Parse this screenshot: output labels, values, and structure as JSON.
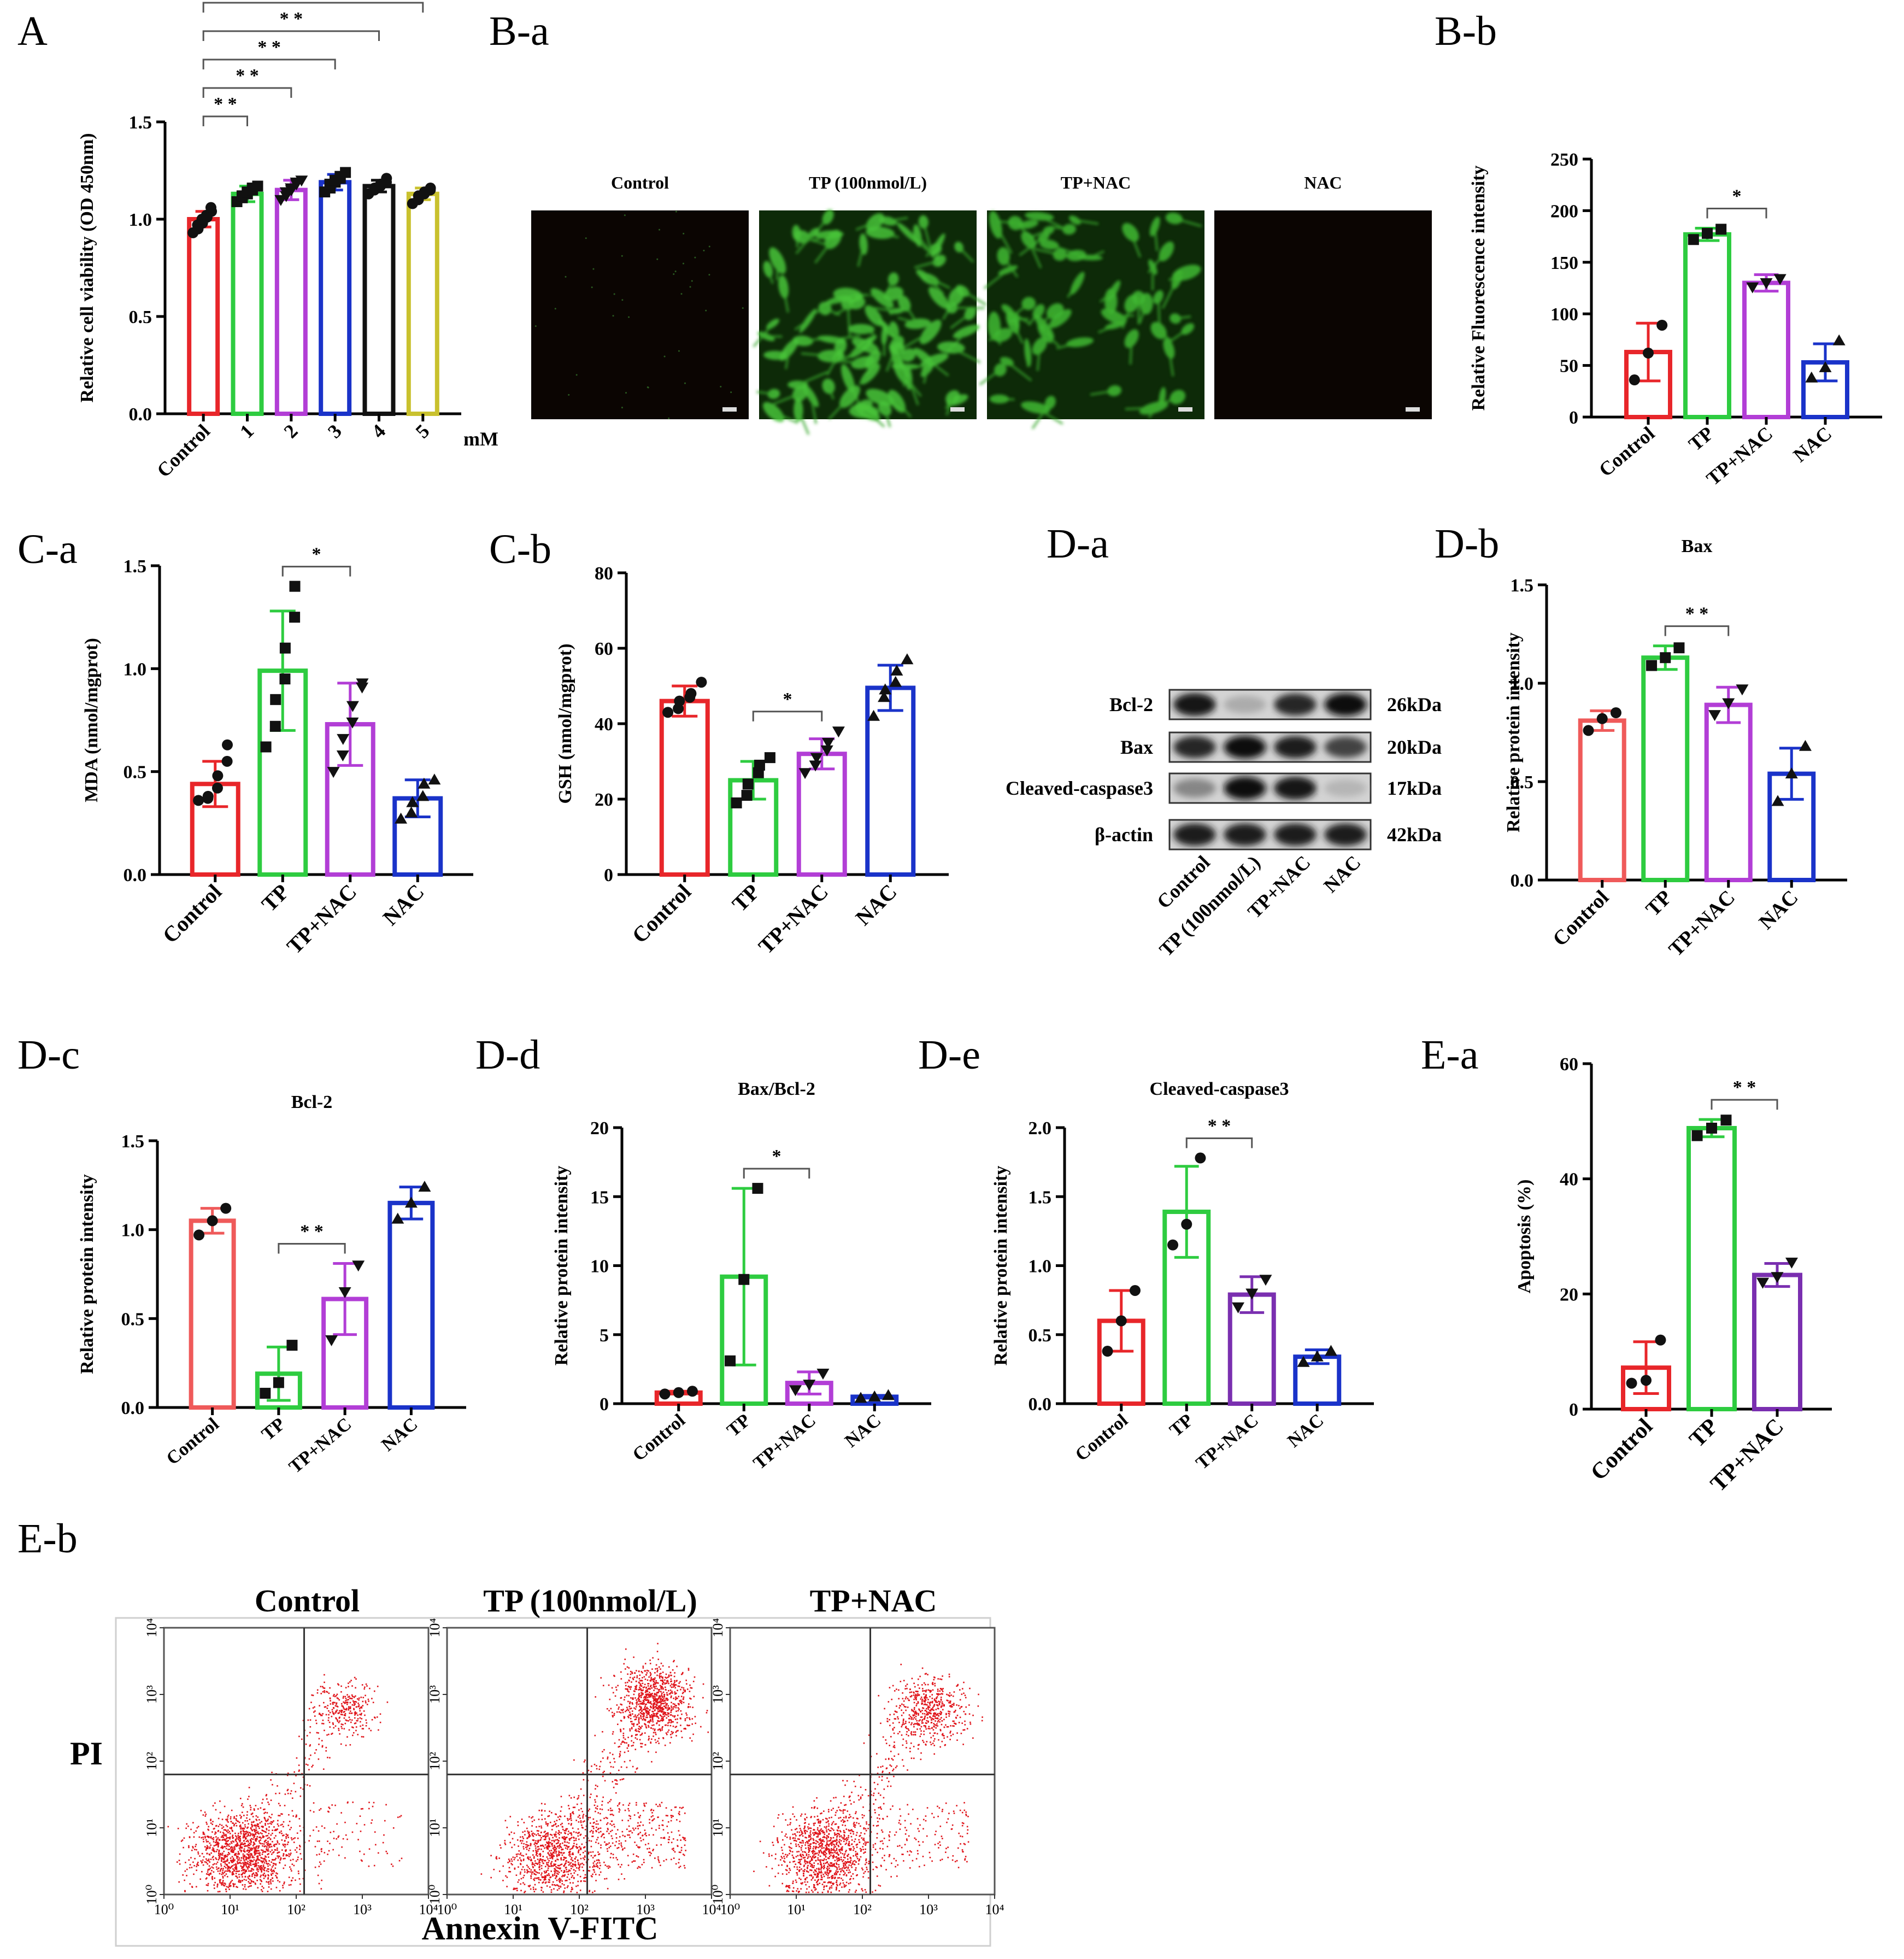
{
  "panel_labels": [
    "A",
    "B-a",
    "B-b",
    "C-a",
    "C-b",
    "D-a",
    "D-b",
    "D-c",
    "D-d",
    "D-e",
    "E-a",
    "E-b"
  ],
  "colors": {
    "red": "#e8262a",
    "green": "#2ecc40",
    "purple": "#b23ed6",
    "blue": "#1a33c9",
    "black": "#111111",
    "yellow": "#c9c12e",
    "salmon": "#ef5a5a",
    "darkpurple": "#7a2fb0",
    "flow": "#e0141a"
  },
  "chart_data": [
    {
      "id": "A",
      "type": "bar",
      "ylabel": "Relative cell viability (OD 450nm)",
      "categories": [
        "Control",
        "1",
        "2",
        "3",
        "4",
        "5"
      ],
      "unit_label": "mM",
      "values": [
        1.0,
        1.13,
        1.15,
        1.19,
        1.17,
        1.13
      ],
      "errors": [
        0.04,
        0.04,
        0.05,
        0.04,
        0.03,
        0.03
      ],
      "ylim": [
        0,
        1.5
      ],
      "yticks": [
        0.0,
        0.5,
        1.0,
        1.5
      ],
      "colors": [
        "red",
        "green",
        "purple",
        "blue",
        "black",
        "yellow"
      ],
      "markers": [
        "circle",
        "square",
        "triangle-down",
        "square",
        "circle",
        "circle"
      ],
      "points": [
        [
          0.93,
          0.95,
          0.97,
          0.98,
          1.0,
          1.01,
          1.02,
          1.04,
          1.06
        ],
        [
          1.09,
          1.11,
          1.12,
          1.13,
          1.14,
          1.15,
          1.16,
          1.17
        ],
        [
          1.1,
          1.12,
          1.14,
          1.15,
          1.16,
          1.18,
          1.19,
          1.2
        ],
        [
          1.14,
          1.16,
          1.18,
          1.19,
          1.2,
          1.21,
          1.22,
          1.24
        ],
        [
          1.13,
          1.15,
          1.16,
          1.17,
          1.18,
          1.19,
          1.21
        ],
        [
          1.08,
          1.1,
          1.12,
          1.13,
          1.14,
          1.15,
          1.16
        ]
      ],
      "significance": [
        {
          "from": 0,
          "to": 1,
          "label": "* *"
        },
        {
          "from": 0,
          "to": 2,
          "label": "* *"
        },
        {
          "from": 0,
          "to": 3,
          "label": "* *"
        },
        {
          "from": 0,
          "to": 4,
          "label": "* *"
        },
        {
          "from": 0,
          "to": 5,
          "label": "* *"
        }
      ]
    },
    {
      "id": "B-b",
      "type": "bar",
      "ylabel": "Relative Fluorescence intensity",
      "categories": [
        "Control",
        "TP",
        "TP+NAC",
        "NAC"
      ],
      "values": [
        63,
        177,
        130,
        53
      ],
      "errors": [
        28,
        6,
        8,
        18
      ],
      "ylim": [
        0,
        250
      ],
      "yticks": [
        0,
        50,
        100,
        150,
        200,
        250
      ],
      "colors": [
        "red",
        "green",
        "purple",
        "blue"
      ],
      "markers": [
        "circle",
        "square",
        "triangle-down",
        "triangle-up"
      ],
      "points": [
        [
          36,
          62,
          89
        ],
        [
          172,
          178,
          182
        ],
        [
          126,
          130,
          134
        ],
        [
          38,
          48,
          74
        ]
      ],
      "significance": [
        {
          "from": 1,
          "to": 2,
          "label": "*"
        }
      ]
    },
    {
      "id": "C-a",
      "type": "bar",
      "ylabel": "MDA (nmol/mgprot)",
      "categories": [
        "Control",
        "TP",
        "TP+NAC",
        "NAC"
      ],
      "values": [
        0.44,
        0.99,
        0.73,
        0.37
      ],
      "errors": [
        0.11,
        0.29,
        0.2,
        0.09
      ],
      "ylim": [
        0,
        1.5
      ],
      "yticks": [
        0.0,
        0.5,
        1.0,
        1.5
      ],
      "colors": [
        "red",
        "green",
        "purple",
        "blue"
      ],
      "markers": [
        "circle",
        "square",
        "triangle-down",
        "triangle-up"
      ],
      "points": [
        [
          0.36,
          0.37,
          0.38,
          0.42,
          0.48,
          0.55,
          0.63
        ],
        [
          0.62,
          0.72,
          0.85,
          0.95,
          1.1,
          1.25,
          1.4
        ],
        [
          0.5,
          0.58,
          0.66,
          0.74,
          0.82,
          0.91,
          0.93
        ],
        [
          0.27,
          0.3,
          0.35,
          0.38,
          0.44,
          0.46
        ]
      ],
      "significance": [
        {
          "from": 1,
          "to": 2,
          "label": "*"
        }
      ]
    },
    {
      "id": "C-b",
      "type": "bar",
      "ylabel": "GSH (nmol/mgprot)",
      "categories": [
        "Control",
        "TP",
        "TP+NAC",
        "NAC"
      ],
      "values": [
        46,
        25,
        32,
        49.5
      ],
      "errors": [
        4,
        5,
        4,
        6
      ],
      "ylim": [
        0,
        80
      ],
      "yticks": [
        0,
        20,
        40,
        60,
        80
      ],
      "colors": [
        "red",
        "green",
        "purple",
        "blue"
      ],
      "markers": [
        "circle",
        "square",
        "triangle-down",
        "triangle-up"
      ],
      "points": [
        [
          43,
          44,
          46,
          47,
          48,
          51
        ],
        [
          19,
          21,
          24,
          27,
          29,
          31
        ],
        [
          27,
          29,
          31,
          33,
          35,
          38
        ],
        [
          42,
          47,
          49,
          51,
          54,
          57
        ]
      ],
      "significance": [
        {
          "from": 1,
          "to": 2,
          "label": "*"
        }
      ]
    },
    {
      "id": "D-b",
      "type": "bar",
      "title": "Bax",
      "ylabel": "Relative protein intensity",
      "categories": [
        "Control",
        "TP",
        "TP+NAC",
        "NAC"
      ],
      "values": [
        0.81,
        1.13,
        0.89,
        0.54
      ],
      "errors": [
        0.05,
        0.06,
        0.09,
        0.13
      ],
      "ylim": [
        0,
        1.5
      ],
      "yticks": [
        0.0,
        0.5,
        1.0,
        1.5
      ],
      "colors": [
        "salmon",
        "green",
        "purple",
        "blue"
      ],
      "markers": [
        "circle",
        "square",
        "triangle-down",
        "triangle-up"
      ],
      "points": [
        [
          0.76,
          0.82,
          0.85
        ],
        [
          1.09,
          1.13,
          1.18
        ],
        [
          0.84,
          0.9,
          0.97
        ],
        [
          0.4,
          0.54,
          0.68
        ]
      ],
      "significance": [
        {
          "from": 1,
          "to": 2,
          "label": "* *"
        }
      ]
    },
    {
      "id": "D-c",
      "type": "bar",
      "title": "Bcl-2",
      "ylabel": "Relative protein intensity",
      "categories": [
        "Control",
        "TP",
        "TP+NAC",
        "NAC"
      ],
      "values": [
        1.05,
        0.19,
        0.61,
        1.15
      ],
      "errors": [
        0.07,
        0.15,
        0.2,
        0.09
      ],
      "ylim": [
        0,
        1.5
      ],
      "yticks": [
        0.0,
        0.5,
        1.0,
        1.5
      ],
      "colors": [
        "salmon",
        "green",
        "purple",
        "blue"
      ],
      "markers": [
        "circle",
        "square",
        "triangle-down",
        "triangle-up"
      ],
      "points": [
        [
          0.97,
          1.05,
          1.12
        ],
        [
          0.08,
          0.14,
          0.35
        ],
        [
          0.38,
          0.65,
          0.8
        ],
        [
          1.06,
          1.15,
          1.24
        ]
      ],
      "significance": [
        {
          "from": 1,
          "to": 2,
          "label": "* *"
        }
      ]
    },
    {
      "id": "D-d",
      "type": "bar",
      "title": "Bax/Bcl-2",
      "ylabel": "Relative protein intensity",
      "categories": [
        "Control",
        "TP",
        "TP+NAC",
        "NAC"
      ],
      "values": [
        0.8,
        9.2,
        1.5,
        0.5
      ],
      "errors": [
        0.1,
        6.4,
        0.8,
        0.1
      ],
      "ylim": [
        0,
        20
      ],
      "yticks": [
        0,
        5,
        10,
        15,
        20
      ],
      "colors": [
        "red",
        "green",
        "purple",
        "blue"
      ],
      "markers": [
        "circle",
        "square",
        "triangle-down",
        "triangle-up"
      ],
      "points": [
        [
          0.7,
          0.8,
          0.9
        ],
        [
          3.1,
          9.0,
          15.6
        ],
        [
          1.0,
          1.4,
          2.2
        ],
        [
          0.4,
          0.5,
          0.6
        ]
      ],
      "significance": [
        {
          "from": 1,
          "to": 2,
          "label": "*"
        }
      ]
    },
    {
      "id": "D-e",
      "type": "bar",
      "title": "Cleaved-caspase3",
      "ylabel": "Relative protein intensity",
      "categories": [
        "Control",
        "TP",
        "TP+NAC",
        "NAC"
      ],
      "values": [
        0.6,
        1.39,
        0.79,
        0.34
      ],
      "errors": [
        0.22,
        0.33,
        0.13,
        0.05
      ],
      "ylim": [
        0,
        2.0
      ],
      "yticks": [
        0.0,
        0.5,
        1.0,
        1.5,
        2.0
      ],
      "colors": [
        "red",
        "green",
        "darkpurple",
        "blue"
      ],
      "markers": [
        "circle",
        "circle",
        "triangle-down",
        "triangle-up"
      ],
      "points": [
        [
          0.38,
          0.6,
          0.82
        ],
        [
          1.15,
          1.3,
          1.78
        ],
        [
          0.7,
          0.8,
          0.9
        ],
        [
          0.3,
          0.34,
          0.38
        ]
      ],
      "significance": [
        {
          "from": 1,
          "to": 2,
          "label": "* *"
        }
      ]
    },
    {
      "id": "E-a",
      "type": "bar",
      "ylabel": "Apoptosis (%)",
      "categories": [
        "Control",
        "TP",
        "TP+NAC"
      ],
      "values": [
        7.2,
        48.8,
        23.3
      ],
      "errors": [
        4.5,
        1.5,
        2.0
      ],
      "ylim": [
        0,
        60
      ],
      "yticks": [
        0,
        20,
        40,
        60
      ],
      "colors": [
        "red",
        "green",
        "darkpurple"
      ],
      "markers": [
        "circle",
        "square",
        "triangle-down"
      ],
      "points": [
        [
          4.5,
          5.0,
          12.0
        ],
        [
          47.5,
          48.8,
          50.2
        ],
        [
          22.0,
          23.0,
          25.5
        ]
      ],
      "significance": [
        {
          "from": 1,
          "to": 2,
          "label": "* *"
        }
      ]
    }
  ],
  "fluorescence_images": {
    "titles": [
      "Control",
      "TP (100nmol/L)",
      "TP+NAC",
      "NAC"
    ]
  },
  "western_blot": {
    "proteins": [
      "Bcl-2",
      "Bax",
      "Cleaved-caspase3",
      "β-actin"
    ],
    "sizes": [
      "26kDa",
      "20kDa",
      "17kDa",
      "42kDa"
    ],
    "lanes": [
      "Control",
      "TP (100nmol/L)",
      "TP+NAC",
      "NAC"
    ],
    "band_intensity": [
      [
        0.95,
        0.15,
        0.85,
        1.0
      ],
      [
        0.85,
        1.0,
        0.9,
        0.7
      ],
      [
        0.35,
        1.0,
        0.95,
        0.1
      ],
      [
        0.9,
        0.9,
        0.9,
        0.9
      ]
    ]
  },
  "flow_cytometry": {
    "titles": [
      "Control",
      "TP (100nmol/L)",
      "TP+NAC"
    ],
    "xlabel": "Annexin V-FITC",
    "ylabel": "PI",
    "tick_labels": [
      "10⁰",
      "10¹",
      "10²",
      "10³",
      "10⁴"
    ]
  }
}
